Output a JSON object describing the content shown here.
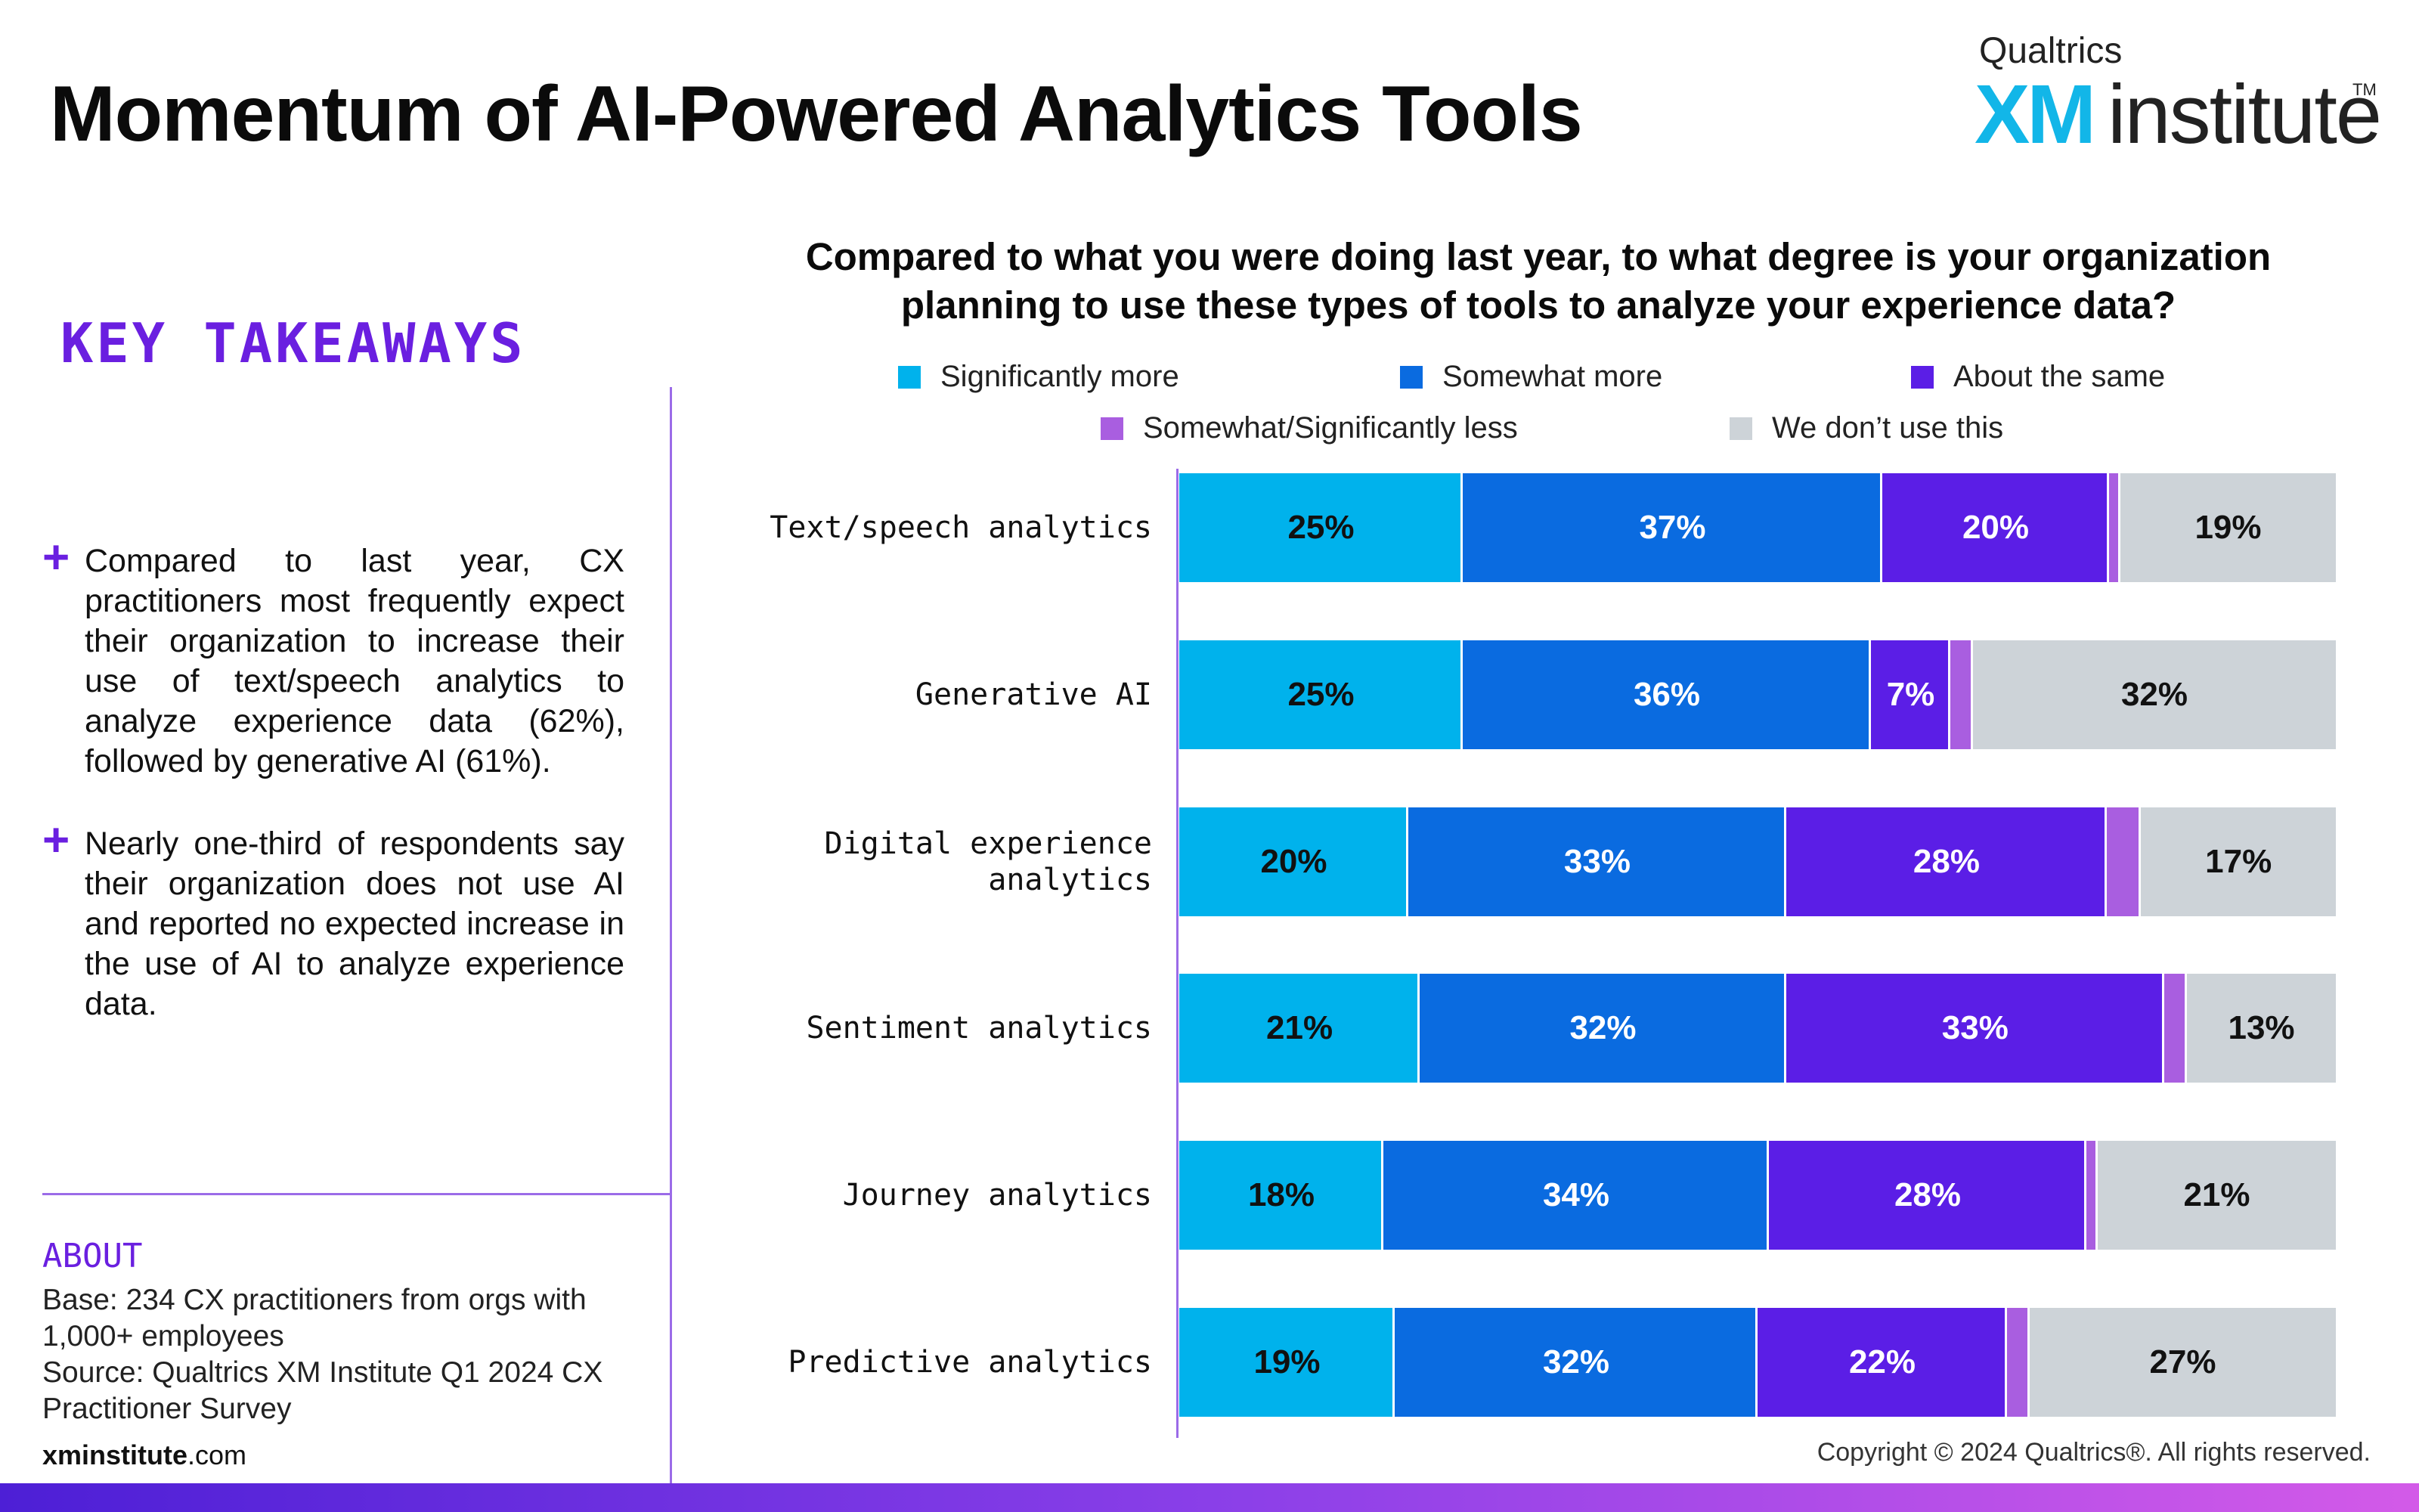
{
  "header": {
    "title": "Momentum of AI-Powered Analytics Tools",
    "logo_top": "Qualtrics",
    "logo_xm": "XM",
    "logo_institute": "institute",
    "logo_tm": "TM"
  },
  "sidebar": {
    "heading": "KEY TAKEAWAYS",
    "takeaways": [
      "Compared to last year, CX practitioners most frequently expect their organization to increase their use of text/speech analytics to analyze experience data (62%), followed by generative AI (61%).",
      "Nearly one-third of respondents say their organization does not use AI and reported no expected increase in the use of AI to analyze experience data."
    ],
    "about_heading": "ABOUT",
    "about_base_label": "Base:",
    "about_base": "234 CX practitioners from orgs with 1,000+ employees",
    "about_source_label": "Source:",
    "about_source": "Qualtrics XM Institute Q1 2024 CX Practitioner Survey",
    "site_bold": "xminstitute",
    "site_rest": ".com"
  },
  "footer": {
    "copyright": "Copyright © 2024 Qualtrics®. All rights reserved."
  },
  "colors": {
    "significantly_more": "#00b2ec",
    "somewhat_more": "#0a6be0",
    "about_same": "#5b1ee6",
    "less": "#a95ee0",
    "dont_use": "#cdd3d8",
    "accent": "#6a1fe0"
  },
  "chart_data": {
    "type": "bar",
    "orientation": "horizontal-stacked",
    "title": "Compared to what you were doing last year, to what degree is your organization planning to use these types of tools to analyze your experience data?",
    "legend_position": "top",
    "categories": [
      "Text/speech analytics",
      "Generative AI",
      "Digital experience analytics",
      "Sentiment analytics",
      "Journey analytics",
      "Predictive analytics"
    ],
    "series": [
      {
        "name": "Significantly more",
        "color": "#00b2ec",
        "values": [
          25,
          25,
          20,
          21,
          18,
          19
        ],
        "labels": [
          "25%",
          "25%",
          "20%",
          "21%",
          "18%",
          "19%"
        ],
        "label_color": "#111111"
      },
      {
        "name": "Somewhat more",
        "color": "#0a6be0",
        "values": [
          37,
          36,
          33,
          32,
          34,
          32
        ],
        "labels": [
          "37%",
          "36%",
          "33%",
          "32%",
          "34%",
          "32%"
        ],
        "label_color": "#ffffff"
      },
      {
        "name": "About the same",
        "color": "#5b1ee6",
        "values": [
          20,
          7,
          28,
          33,
          28,
          22
        ],
        "labels": [
          "20%",
          "7%",
          "28%",
          "33%",
          "28%",
          "22%"
        ],
        "label_color": "#ffffff"
      },
      {
        "name": "Somewhat/Significantly less",
        "color": "#a95ee0",
        "values": [
          1,
          2,
          3,
          2,
          1,
          2
        ],
        "labels": [
          "",
          "",
          "",
          "",
          "",
          ""
        ],
        "label_color": "#ffffff"
      },
      {
        "name": "We don’t use this",
        "color": "#cdd3d8",
        "values": [
          19,
          32,
          17,
          13,
          21,
          27
        ],
        "labels": [
          "19%",
          "32%",
          "17%",
          "13%",
          "21%",
          "27%"
        ],
        "label_color": "#111111"
      }
    ]
  }
}
